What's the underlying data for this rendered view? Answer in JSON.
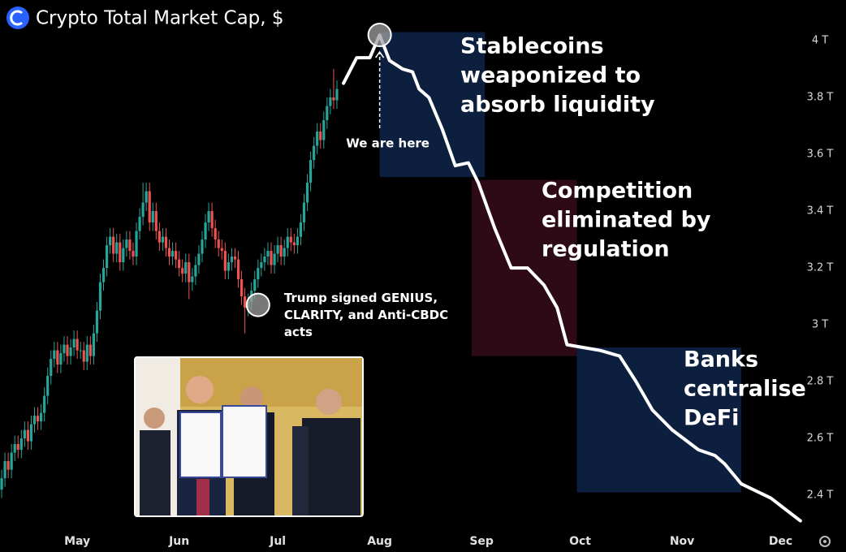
{
  "chart_data": {
    "type": "candlestick",
    "title": "Crypto Total Market Cap, $",
    "xlim": [
      97.5,
      344.5
    ],
    "xticks": [
      {
        "value": 121,
        "label": "May"
      },
      {
        "value": 152,
        "label": "Jun"
      },
      {
        "value": 182,
        "label": "Jul"
      },
      {
        "value": 213,
        "label": "Aug"
      },
      {
        "value": 244,
        "label": "Sep"
      },
      {
        "value": 274,
        "label": "Oct"
      },
      {
        "value": 305,
        "label": "Nov"
      },
      {
        "value": 335,
        "label": "Dec"
      }
    ],
    "ylim": [
      2.286,
      4.143
    ],
    "yticks": [
      {
        "value": 2.4,
        "label": "2.4 T"
      },
      {
        "value": 2.6,
        "label": "2.6 T"
      },
      {
        "value": 2.8,
        "label": "2.8 T"
      },
      {
        "value": 3,
        "label": "3 T"
      },
      {
        "value": 3.2,
        "label": "3.2 T"
      },
      {
        "value": 3.4,
        "label": "3.4 T"
      },
      {
        "value": 3.6,
        "label": "3.6 T"
      },
      {
        "value": 3.8,
        "label": "3.8 T"
      },
      {
        "value": 4,
        "label": "4 T"
      }
    ],
    "up_color": "#26a69a",
    "down_color": "#ef5350",
    "x": [
      98,
      99,
      100,
      101,
      102,
      103,
      104,
      105,
      106,
      107,
      108,
      109,
      110,
      111,
      112,
      113,
      114,
      115,
      116,
      117,
      118,
      119,
      120,
      121,
      122,
      123,
      124,
      125,
      126,
      127,
      128,
      129,
      130,
      131,
      132,
      133,
      134,
      135,
      136,
      137,
      138,
      139,
      140,
      141,
      142,
      143,
      144,
      145,
      146,
      147,
      148,
      149,
      150,
      151,
      152,
      153,
      154,
      155,
      156,
      157,
      158,
      159,
      160,
      161,
      162,
      163,
      164,
      165,
      166,
      167,
      168,
      169,
      170,
      171,
      172,
      173,
      174,
      175,
      176,
      177,
      178,
      179,
      180,
      181,
      182,
      183,
      184,
      185,
      186,
      187,
      188,
      189,
      190,
      191,
      192,
      193,
      194,
      195,
      196,
      197,
      198,
      199,
      200
    ],
    "open": [
      2.42,
      2.46,
      2.52,
      2.49,
      2.55,
      2.58,
      2.56,
      2.6,
      2.63,
      2.59,
      2.65,
      2.68,
      2.66,
      2.69,
      2.75,
      2.82,
      2.88,
      2.91,
      2.86,
      2.9,
      2.93,
      2.89,
      2.92,
      2.95,
      2.91,
      2.91,
      2.87,
      2.93,
      2.89,
      2.97,
      3.05,
      3.15,
      3.2,
      3.28,
      3.31,
      3.25,
      3.29,
      3.22,
      3.27,
      3.3,
      3.26,
      3.24,
      3.33,
      3.38,
      3.43,
      3.47,
      3.36,
      3.4,
      3.33,
      3.29,
      3.31,
      3.27,
      3.24,
      3.26,
      3.23,
      3.2,
      3.18,
      3.22,
      3.15,
      3.17,
      3.21,
      3.25,
      3.3,
      3.36,
      3.4,
      3.34,
      3.3,
      3.27,
      3.26,
      3.19,
      3.22,
      3.24,
      3.23,
      3.16,
      3.1,
      3.06,
      3.08,
      3.12,
      3.16,
      3.2,
      3.22,
      3.24,
      3.26,
      3.21,
      3.25,
      3.28,
      3.24,
      3.27,
      3.31,
      3.29,
      3.28,
      3.31,
      3.36,
      3.43,
      3.5,
      3.58,
      3.63,
      3.68,
      3.65,
      3.72,
      3.77,
      3.8,
      3.79
    ],
    "high": [
      2.49,
      2.55,
      2.55,
      2.58,
      2.61,
      2.61,
      2.63,
      2.66,
      2.66,
      2.68,
      2.71,
      2.71,
      2.72,
      2.78,
      2.85,
      2.91,
      2.94,
      2.94,
      2.93,
      2.96,
      2.96,
      2.95,
      2.98,
      2.98,
      2.94,
      2.94,
      2.96,
      2.96,
      3.0,
      3.08,
      3.18,
      3.23,
      3.31,
      3.34,
      3.34,
      3.32,
      3.32,
      3.3,
      3.33,
      3.33,
      3.29,
      3.36,
      3.41,
      3.5,
      3.5,
      3.5,
      3.43,
      3.43,
      3.36,
      3.34,
      3.34,
      3.3,
      3.29,
      3.29,
      3.26,
      3.23,
      3.25,
      3.25,
      3.2,
      3.24,
      3.28,
      3.33,
      3.39,
      3.43,
      3.43,
      3.37,
      3.33,
      3.3,
      3.29,
      3.25,
      3.27,
      3.27,
      3.26,
      3.19,
      3.13,
      3.11,
      3.15,
      3.19,
      3.23,
      3.25,
      3.27,
      3.29,
      3.29,
      3.28,
      3.31,
      3.31,
      3.3,
      3.34,
      3.34,
      3.32,
      3.34,
      3.39,
      3.46,
      3.53,
      3.61,
      3.66,
      3.71,
      3.71,
      3.75,
      3.8,
      3.83,
      3.9,
      3.86
    ],
    "low": [
      2.39,
      2.43,
      2.46,
      2.46,
      2.52,
      2.53,
      2.53,
      2.57,
      2.56,
      2.56,
      2.62,
      2.63,
      2.63,
      2.66,
      2.72,
      2.79,
      2.85,
      2.83,
      2.83,
      2.87,
      2.86,
      2.86,
      2.89,
      2.88,
      2.88,
      2.84,
      2.84,
      2.86,
      2.86,
      2.94,
      3.02,
      3.12,
      3.17,
      3.25,
      3.22,
      3.22,
      3.19,
      3.19,
      3.24,
      3.23,
      3.21,
      3.21,
      3.3,
      3.35,
      3.4,
      3.33,
      3.33,
      3.3,
      3.26,
      3.26,
      3.24,
      3.21,
      3.21,
      3.2,
      3.17,
      3.15,
      3.15,
      3.09,
      3.12,
      3.14,
      3.18,
      3.22,
      3.27,
      3.33,
      3.31,
      3.27,
      3.24,
      3.23,
      3.16,
      3.16,
      3.19,
      3.2,
      3.13,
      3.07,
      2.97,
      3.03,
      3.05,
      3.09,
      3.13,
      3.17,
      3.19,
      3.21,
      3.18,
      3.18,
      3.22,
      3.21,
      3.21,
      3.24,
      3.26,
      3.25,
      3.25,
      3.28,
      3.33,
      3.4,
      3.47,
      3.55,
      3.6,
      3.62,
      3.62,
      3.69,
      3.74,
      3.76,
      3.76
    ],
    "close": [
      2.46,
      2.52,
      2.49,
      2.55,
      2.58,
      2.56,
      2.6,
      2.63,
      2.59,
      2.65,
      2.68,
      2.66,
      2.69,
      2.75,
      2.82,
      2.88,
      2.91,
      2.86,
      2.9,
      2.93,
      2.89,
      2.92,
      2.95,
      2.91,
      2.91,
      2.87,
      2.93,
      2.89,
      2.97,
      3.05,
      3.15,
      3.2,
      3.28,
      3.31,
      3.25,
      3.29,
      3.22,
      3.27,
      3.3,
      3.26,
      3.24,
      3.33,
      3.38,
      3.43,
      3.47,
      3.36,
      3.4,
      3.33,
      3.29,
      3.31,
      3.27,
      3.24,
      3.26,
      3.23,
      3.2,
      3.18,
      3.22,
      3.15,
      3.17,
      3.21,
      3.25,
      3.3,
      3.36,
      3.4,
      3.34,
      3.3,
      3.27,
      3.26,
      3.19,
      3.22,
      3.24,
      3.23,
      3.16,
      3.1,
      3.06,
      3.08,
      3.12,
      3.16,
      3.2,
      3.22,
      3.24,
      3.26,
      3.21,
      3.25,
      3.28,
      3.24,
      3.27,
      3.31,
      3.29,
      3.28,
      3.31,
      3.36,
      3.43,
      3.5,
      3.58,
      3.63,
      3.68,
      3.65,
      3.72,
      3.77,
      3.8,
      3.79,
      3.83
    ],
    "projection": {
      "color": "#ffffff",
      "x": [
        202,
        206,
        210,
        213,
        216,
        220,
        223,
        225,
        228,
        232,
        236,
        240,
        243,
        248,
        253,
        258,
        263,
        267,
        270,
        280,
        286,
        291,
        296,
        302,
        310,
        315,
        318,
        323,
        332,
        341
      ],
      "values": [
        3.85,
        3.94,
        3.94,
        4.02,
        3.93,
        3.9,
        3.89,
        3.83,
        3.8,
        3.69,
        3.56,
        3.57,
        3.5,
        3.34,
        3.2,
        3.2,
        3.14,
        3.06,
        2.93,
        2.91,
        2.89,
        2.8,
        2.7,
        2.63,
        2.56,
        2.54,
        2.51,
        2.44,
        2.39,
        2.31
      ]
    },
    "zones": [
      {
        "label": [
          "Stablecoins",
          "weaponized to",
          "absorb liquidity"
        ],
        "color": "#0c1f3f",
        "xlim": [
          213,
          245
        ],
        "ylim": [
          3.52,
          4.03
        ]
      },
      {
        "label": [
          "Competition",
          "eliminated by",
          "regulation"
        ],
        "color": "#2e0a16",
        "xlim": [
          241,
          273
        ],
        "ylim": [
          2.89,
          3.51
        ]
      },
      {
        "label": [
          "Banks",
          "centralise",
          "DeFi"
        ],
        "color": "#0c1f3f",
        "xlim": [
          273,
          323
        ],
        "ylim": [
          2.41,
          2.92
        ]
      }
    ],
    "annotations": [
      {
        "text": [
          "We are here"
        ],
        "x": 213,
        "y": 4.02
      },
      {
        "text": [
          "Trump signed GENIUS,",
          "CLARITY, and Anti-CBDC",
          "acts"
        ],
        "x": 176,
        "y": 3.07
      }
    ]
  }
}
